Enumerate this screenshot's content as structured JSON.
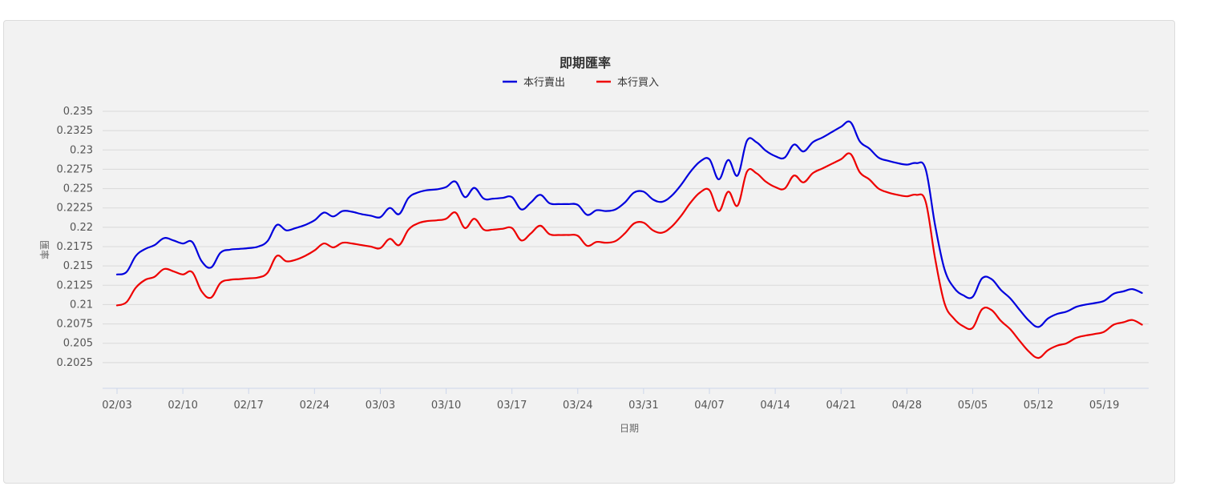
{
  "chart_data": {
    "type": "line",
    "title": "即期匯率",
    "xlabel": "日期",
    "ylabel": "匯率",
    "ylim": [
      0.2,
      0.235
    ],
    "y_ticks": [
      "0.235",
      "0.2325",
      "0.23",
      "0.2275",
      "0.225",
      "0.2225",
      "0.22",
      "0.2175",
      "0.215",
      "0.2125",
      "0.21",
      "0.2075",
      "0.205",
      "0.2025"
    ],
    "x_ticks": [
      "02/03",
      "02/10",
      "02/17",
      "02/24",
      "03/03",
      "03/10",
      "03/17",
      "03/24",
      "03/31",
      "04/07",
      "04/14",
      "04/21",
      "04/28",
      "05/05",
      "05/12",
      "05/19"
    ],
    "legend_position": "top",
    "grid": true,
    "series": [
      {
        "name": "本行賣出",
        "color": "#0000dd",
        "points": [
          [
            "02/03",
            0.2139
          ],
          [
            "02/04",
            0.2142
          ],
          [
            "02/05",
            0.2163
          ],
          [
            "02/06",
            0.2172
          ],
          [
            "02/07",
            0.2177
          ],
          [
            "02/08",
            0.2186
          ],
          [
            "02/09",
            0.2183
          ],
          [
            "02/10",
            0.2179
          ],
          [
            "02/11",
            0.2181
          ],
          [
            "02/12",
            0.2156
          ],
          [
            "02/13",
            0.2148
          ],
          [
            "02/14",
            0.2167
          ],
          [
            "02/15",
            0.2171
          ],
          [
            "02/16",
            0.2172
          ],
          [
            "02/17",
            0.2173
          ],
          [
            "02/18",
            0.2175
          ],
          [
            "02/19",
            0.2182
          ],
          [
            "02/20",
            0.2203
          ],
          [
            "02/21",
            0.2196
          ],
          [
            "02/22",
            0.2199
          ],
          [
            "02/23",
            0.2203
          ],
          [
            "02/24",
            0.2209
          ],
          [
            "02/25",
            0.2219
          ],
          [
            "02/26",
            0.2214
          ],
          [
            "02/27",
            0.2221
          ],
          [
            "02/28",
            0.222
          ],
          [
            "03/01",
            0.2217
          ],
          [
            "03/02",
            0.2215
          ],
          [
            "03/03",
            0.2213
          ],
          [
            "03/04",
            0.2225
          ],
          [
            "03/05",
            0.2217
          ],
          [
            "03/06",
            0.2238
          ],
          [
            "03/07",
            0.2245
          ],
          [
            "03/08",
            0.2248
          ],
          [
            "03/09",
            0.2249
          ],
          [
            "03/10",
            0.2252
          ],
          [
            "03/11",
            0.2259
          ],
          [
            "03/12",
            0.2239
          ],
          [
            "03/13",
            0.2251
          ],
          [
            "03/14",
            0.2237
          ],
          [
            "03/15",
            0.2237
          ],
          [
            "03/16",
            0.2238
          ],
          [
            "03/17",
            0.2239
          ],
          [
            "03/18",
            0.2223
          ],
          [
            "03/19",
            0.2232
          ],
          [
            "03/20",
            0.2242
          ],
          [
            "03/21",
            0.2231
          ],
          [
            "03/22",
            0.223
          ],
          [
            "03/23",
            0.223
          ],
          [
            "03/24",
            0.2229
          ],
          [
            "03/25",
            0.2216
          ],
          [
            "03/26",
            0.2222
          ],
          [
            "03/27",
            0.2221
          ],
          [
            "03/28",
            0.2223
          ],
          [
            "03/29",
            0.2232
          ],
          [
            "03/30",
            0.2245
          ],
          [
            "03/31",
            0.2246
          ],
          [
            "04/01",
            0.2236
          ],
          [
            "04/02",
            0.2233
          ],
          [
            "04/03",
            0.2241
          ],
          [
            "04/04",
            0.2255
          ],
          [
            "04/05",
            0.2272
          ],
          [
            "04/06",
            0.2285
          ],
          [
            "04/07",
            0.2288
          ],
          [
            "04/08",
            0.2262
          ],
          [
            "04/09",
            0.2287
          ],
          [
            "04/10",
            0.2267
          ],
          [
            "04/11",
            0.2312
          ],
          [
            "04/12",
            0.231
          ],
          [
            "04/13",
            0.2299
          ],
          [
            "04/14",
            0.2292
          ],
          [
            "04/15",
            0.229
          ],
          [
            "04/16",
            0.2307
          ],
          [
            "04/17",
            0.2298
          ],
          [
            "04/18",
            0.231
          ],
          [
            "04/19",
            0.2316
          ],
          [
            "04/20",
            0.2323
          ],
          [
            "04/21",
            0.233
          ],
          [
            "04/22",
            0.2336
          ],
          [
            "04/23",
            0.2311
          ],
          [
            "04/24",
            0.2302
          ],
          [
            "04/25",
            0.229
          ],
          [
            "04/26",
            0.2286
          ],
          [
            "04/27",
            0.2283
          ],
          [
            "04/28",
            0.2281
          ],
          [
            "04/29",
            0.2283
          ],
          [
            "04/30",
            0.2275
          ],
          [
            "05/01",
            0.2203
          ],
          [
            "05/02",
            0.2146
          ],
          [
            "05/03",
            0.2122
          ],
          [
            "05/04",
            0.2112
          ],
          [
            "05/05",
            0.211
          ],
          [
            "05/06",
            0.2134
          ],
          [
            "05/07",
            0.2133
          ],
          [
            "05/08",
            0.2119
          ],
          [
            "05/09",
            0.2108
          ],
          [
            "05/10",
            0.2093
          ],
          [
            "05/11",
            0.2079
          ],
          [
            "05/12",
            0.2071
          ],
          [
            "05/13",
            0.2082
          ],
          [
            "05/14",
            0.2088
          ],
          [
            "05/15",
            0.2091
          ],
          [
            "05/16",
            0.2097
          ],
          [
            "05/17",
            0.21
          ],
          [
            "05/18",
            0.2102
          ],
          [
            "05/19",
            0.2105
          ],
          [
            "05/20",
            0.2114
          ],
          [
            "05/21",
            0.2117
          ],
          [
            "05/22",
            0.212
          ],
          [
            "05/23",
            0.2115
          ]
        ]
      },
      {
        "name": "本行買入",
        "color": "#ee0000",
        "points": [
          [
            "02/03",
            0.2099
          ],
          [
            "02/04",
            0.2103
          ],
          [
            "02/05",
            0.2122
          ],
          [
            "02/06",
            0.2132
          ],
          [
            "02/07",
            0.2136
          ],
          [
            "02/08",
            0.2146
          ],
          [
            "02/09",
            0.2143
          ],
          [
            "02/10",
            0.2139
          ],
          [
            "02/11",
            0.2142
          ],
          [
            "02/12",
            0.2117
          ],
          [
            "02/13",
            0.2109
          ],
          [
            "02/14",
            0.2128
          ],
          [
            "02/15",
            0.2132
          ],
          [
            "02/16",
            0.2133
          ],
          [
            "02/17",
            0.2134
          ],
          [
            "02/18",
            0.2135
          ],
          [
            "02/19",
            0.2141
          ],
          [
            "02/20",
            0.2163
          ],
          [
            "02/21",
            0.2156
          ],
          [
            "02/22",
            0.2158
          ],
          [
            "02/23",
            0.2163
          ],
          [
            "02/24",
            0.217
          ],
          [
            "02/25",
            0.2179
          ],
          [
            "02/26",
            0.2174
          ],
          [
            "02/27",
            0.218
          ],
          [
            "02/28",
            0.2179
          ],
          [
            "03/01",
            0.2177
          ],
          [
            "03/02",
            0.2175
          ],
          [
            "03/03",
            0.2173
          ],
          [
            "03/04",
            0.2185
          ],
          [
            "03/05",
            0.2177
          ],
          [
            "03/06",
            0.2197
          ],
          [
            "03/07",
            0.2205
          ],
          [
            "03/08",
            0.2208
          ],
          [
            "03/09",
            0.2209
          ],
          [
            "03/10",
            0.2211
          ],
          [
            "03/11",
            0.2219
          ],
          [
            "03/12",
            0.2199
          ],
          [
            "03/13",
            0.2211
          ],
          [
            "03/14",
            0.2197
          ],
          [
            "03/15",
            0.2197
          ],
          [
            "03/16",
            0.2198
          ],
          [
            "03/17",
            0.2199
          ],
          [
            "03/18",
            0.2183
          ],
          [
            "03/19",
            0.2192
          ],
          [
            "03/20",
            0.2202
          ],
          [
            "03/21",
            0.2191
          ],
          [
            "03/22",
            0.219
          ],
          [
            "03/23",
            0.219
          ],
          [
            "03/24",
            0.2189
          ],
          [
            "03/25",
            0.2176
          ],
          [
            "03/26",
            0.2181
          ],
          [
            "03/27",
            0.218
          ],
          [
            "03/28",
            0.2182
          ],
          [
            "03/29",
            0.2192
          ],
          [
            "03/30",
            0.2205
          ],
          [
            "03/31",
            0.2206
          ],
          [
            "04/01",
            0.2196
          ],
          [
            "04/02",
            0.2193
          ],
          [
            "04/03",
            0.2201
          ],
          [
            "04/04",
            0.2215
          ],
          [
            "04/05",
            0.2232
          ],
          [
            "04/06",
            0.2245
          ],
          [
            "04/07",
            0.2248
          ],
          [
            "04/08",
            0.2221
          ],
          [
            "04/09",
            0.2246
          ],
          [
            "04/10",
            0.2228
          ],
          [
            "04/11",
            0.2272
          ],
          [
            "04/12",
            0.227
          ],
          [
            "04/13",
            0.2259
          ],
          [
            "04/14",
            0.2252
          ],
          [
            "04/15",
            0.225
          ],
          [
            "04/16",
            0.2267
          ],
          [
            "04/17",
            0.2258
          ],
          [
            "04/18",
            0.227
          ],
          [
            "04/19",
            0.2276
          ],
          [
            "04/20",
            0.2282
          ],
          [
            "04/21",
            0.2288
          ],
          [
            "04/22",
            0.2295
          ],
          [
            "04/23",
            0.2271
          ],
          [
            "04/24",
            0.2262
          ],
          [
            "04/25",
            0.225
          ],
          [
            "04/26",
            0.2245
          ],
          [
            "04/27",
            0.2242
          ],
          [
            "04/28",
            0.224
          ],
          [
            "04/29",
            0.2242
          ],
          [
            "04/30",
            0.2233
          ],
          [
            "05/01",
            0.216
          ],
          [
            "05/02",
            0.2102
          ],
          [
            "05/03",
            0.2082
          ],
          [
            "05/04",
            0.2072
          ],
          [
            "05/05",
            0.207
          ],
          [
            "05/06",
            0.2094
          ],
          [
            "05/07",
            0.2093
          ],
          [
            "05/08",
            0.2079
          ],
          [
            "05/09",
            0.2068
          ],
          [
            "05/10",
            0.2053
          ],
          [
            "05/11",
            0.2039
          ],
          [
            "05/12",
            0.2031
          ],
          [
            "05/13",
            0.2041
          ],
          [
            "05/14",
            0.2047
          ],
          [
            "05/15",
            0.205
          ],
          [
            "05/16",
            0.2057
          ],
          [
            "05/17",
            0.206
          ],
          [
            "05/18",
            0.2062
          ],
          [
            "05/19",
            0.2065
          ],
          [
            "05/20",
            0.2074
          ],
          [
            "05/21",
            0.2077
          ],
          [
            "05/22",
            0.208
          ],
          [
            "05/23",
            0.2074
          ]
        ]
      }
    ]
  }
}
